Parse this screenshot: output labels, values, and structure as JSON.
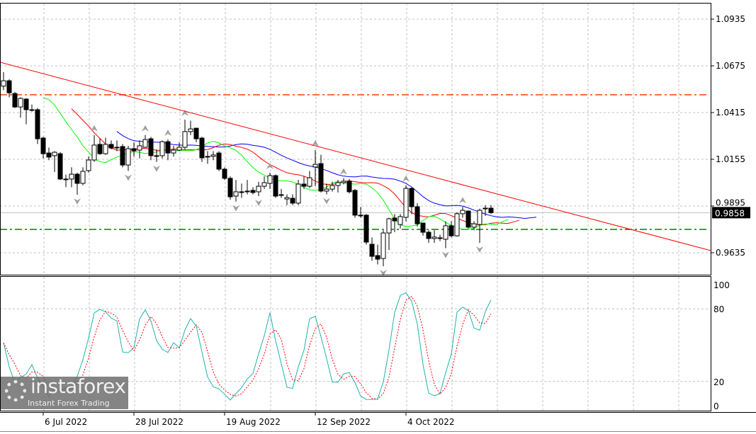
{
  "chart_data": [
    {
      "type": "candlestick",
      "price_ticks": [
        1.0935,
        1.0675,
        1.0415,
        1.0155,
        0.9895,
        0.9635
      ],
      "last_price": 0.9858,
      "date_labels": [
        {
          "label": "6 Jul 2022",
          "bar": 7
        },
        {
          "label": "28 Jul 2022",
          "bar": 23
        },
        {
          "label": "19 Aug 2022",
          "bar": 39
        },
        {
          "label": "12 Sep 2022",
          "bar": 55
        },
        {
          "label": "4 Oct 2022",
          "bar": 71
        }
      ],
      "ohlc": [
        [
          1.0562,
          1.064,
          1.054,
          1.0592
        ],
        [
          1.0592,
          1.06,
          1.05,
          1.0525
        ],
        [
          1.0521,
          1.053,
          1.044,
          1.0446
        ],
        [
          1.0446,
          1.05,
          1.0387,
          1.0494
        ],
        [
          1.049,
          1.0495,
          1.035,
          1.0431
        ],
        [
          1.0431,
          1.046,
          1.042,
          1.0431
        ],
        [
          1.0431,
          1.044,
          1.024,
          1.0269
        ],
        [
          1.0273,
          1.028,
          1.016,
          1.0186
        ],
        [
          1.019,
          1.022,
          1.015,
          1.0167
        ],
        [
          1.0175,
          1.02,
          1.0084,
          1.0194
        ],
        [
          1.0186,
          1.0195,
          1.004,
          1.0045
        ],
        [
          1.0045,
          1.007,
          1.0,
          1.0045
        ],
        [
          1.0045,
          1.011,
          1.0,
          1.0072
        ],
        [
          1.0072,
          1.008,
          0.9958,
          1.0021
        ],
        [
          1.0021,
          1.011,
          1.001,
          1.0088
        ],
        [
          1.0092,
          1.017,
          1.008,
          1.0151
        ],
        [
          1.0151,
          1.029,
          1.014,
          1.0234
        ],
        [
          1.0238,
          1.027,
          1.018,
          1.0186
        ],
        [
          1.0186,
          1.0275,
          1.018,
          1.0238
        ],
        [
          1.0238,
          1.026,
          1.021,
          1.0218
        ],
        [
          1.0222,
          1.026,
          1.02,
          1.0222
        ],
        [
          1.0226,
          1.024,
          1.011,
          1.0123
        ],
        [
          1.0123,
          1.023,
          1.009,
          1.0214
        ],
        [
          1.0214,
          1.025,
          1.017,
          1.0202
        ],
        [
          1.0206,
          1.026,
          1.016,
          1.023
        ],
        [
          1.0222,
          1.029,
          1.022,
          1.0265
        ],
        [
          1.0269,
          1.028,
          1.015,
          1.0175
        ],
        [
          1.0175,
          1.021,
          1.014,
          1.0175
        ],
        [
          1.0175,
          1.026,
          1.016,
          1.0253
        ],
        [
          1.0253,
          1.0265,
          1.015,
          1.019
        ],
        [
          1.019,
          1.023,
          1.017,
          1.0206
        ],
        [
          1.0206,
          1.025,
          1.02,
          1.0222
        ],
        [
          1.0222,
          1.0376,
          1.021,
          1.0309
        ],
        [
          1.0309,
          1.037,
          1.029,
          1.0324
        ],
        [
          1.0328,
          1.033,
          1.025,
          1.0269
        ],
        [
          1.0273,
          1.028,
          1.014,
          1.0163
        ],
        [
          1.0167,
          1.02,
          1.013,
          1.0171
        ],
        [
          1.0171,
          1.02,
          1.015,
          1.0179
        ],
        [
          1.019,
          1.02,
          1.009,
          1.01
        ],
        [
          1.01,
          1.011,
          1.004,
          1.0049
        ],
        [
          1.0049,
          1.006,
          0.993,
          0.9946
        ],
        [
          0.995,
          1.004,
          0.992,
          0.9974
        ],
        [
          0.9974,
          1.002,
          0.994,
          0.9974
        ],
        [
          0.9978,
          1.004,
          0.996,
          0.9978
        ],
        [
          0.9982,
          1.0,
          0.996,
          0.997
        ],
        [
          0.9974,
          1.003,
          0.995,
          1.0005
        ],
        [
          1.0005,
          1.006,
          0.999,
          1.0025
        ],
        [
          1.0021,
          1.008,
          0.999,
          1.0064
        ],
        [
          1.0064,
          1.007,
          0.994,
          0.995
        ],
        [
          0.9958,
          0.999,
          0.994,
          0.9958
        ],
        [
          0.9934,
          0.996,
          0.99,
          0.9942
        ],
        [
          0.9938,
          0.996,
          0.99,
          0.9911
        ],
        [
          0.9911,
          1.004,
          0.99,
          1.0017
        ],
        [
          1.0017,
          1.006,
          0.999,
          1.0005
        ],
        [
          1.0005,
          1.009,
          0.9995,
          1.0052
        ],
        [
          1.0112,
          1.0206,
          1.0005,
          1.0127
        ],
        [
          1.0131,
          1.018,
          0.997,
          0.9978
        ],
        [
          0.9978,
          1.002,
          0.996,
          0.9989
        ],
        [
          0.9989,
          1.003,
          0.9975,
          1.0009
        ],
        [
          1.0009,
          1.004,
          0.997,
          1.0025
        ],
        [
          1.0025,
          1.005,
          1.0015,
          1.0033
        ],
        [
          1.0033,
          1.0045,
          0.9965,
          0.9974
        ],
        [
          0.9982,
          0.999,
          0.983,
          0.9844
        ],
        [
          0.9844,
          0.989,
          0.983,
          0.9844
        ],
        [
          0.9844,
          0.985,
          0.968,
          0.9694
        ],
        [
          0.9682,
          0.972,
          0.959,
          0.9615
        ],
        [
          0.9619,
          0.968,
          0.957,
          0.9599
        ],
        [
          0.9603,
          0.976,
          0.956,
          0.9745
        ],
        [
          0.9745,
          0.983,
          0.965,
          0.9824
        ],
        [
          0.9828,
          0.985,
          0.975,
          0.9812
        ],
        [
          0.9792,
          0.985,
          0.977,
          0.9836
        ],
        [
          0.9832,
          1.001,
          0.981,
          0.9993
        ],
        [
          0.9993,
          0.9998,
          0.985,
          0.9891
        ],
        [
          0.9891,
          0.991,
          0.978,
          0.9796
        ],
        [
          0.98,
          0.98,
          0.973,
          0.9749
        ],
        [
          0.9749,
          0.976,
          0.969,
          0.9714
        ],
        [
          0.9714,
          0.976,
          0.969,
          0.9722
        ],
        [
          0.9718,
          0.9735,
          0.97,
          0.9718
        ],
        [
          0.971,
          0.981,
          0.966,
          0.9785
        ],
        [
          0.9785,
          0.981,
          0.972,
          0.9729
        ],
        [
          0.9729,
          0.986,
          0.9725,
          0.9852
        ],
        [
          0.9852,
          0.989,
          0.983,
          0.9871
        ],
        [
          0.9867,
          0.987,
          0.977,
          0.9777
        ],
        [
          0.9777,
          0.981,
          0.976,
          0.9796
        ],
        [
          0.9792,
          0.988,
          0.969,
          0.9871
        ],
        [
          0.9883,
          0.99,
          0.984,
          0.9883
        ],
        [
          0.9883,
          0.99,
          0.985,
          0.9858
        ]
      ],
      "trendline": {
        "from_price": 1.0695,
        "to_price": 0.9647,
        "color": "#ff0000"
      },
      "levels": [
        {
          "price": 1.0514,
          "color": "#ff4000"
        },
        {
          "price": 0.9765,
          "color": "#008000"
        }
      ],
      "alligator_colors": {
        "jaw": "#0000ff",
        "teeth": "#ff0000",
        "lips": "#00ff00"
      },
      "bull_color": "#ffffff",
      "bear_color": "#000000",
      "grid": true
    },
    {
      "type": "line",
      "y_ticks": [
        100,
        80,
        20,
        0
      ],
      "ylim": [
        0,
        100
      ],
      "main_color": "#20b2aa",
      "signal_color": "#ff0000",
      "grid": true
    }
  ],
  "logo": {
    "brand": "instaforex",
    "tagline": "Instant Forex Trading"
  }
}
